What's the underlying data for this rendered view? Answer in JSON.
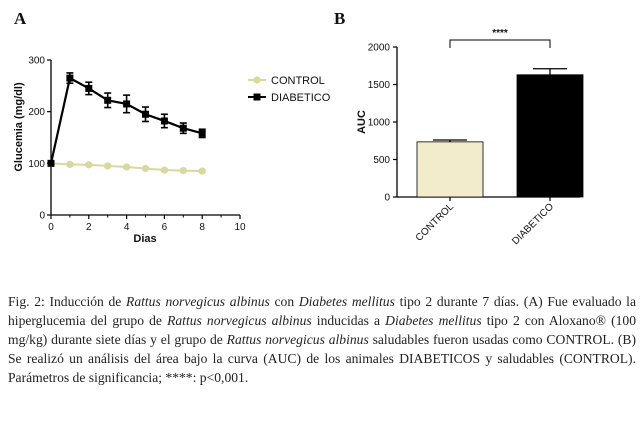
{
  "chart_data": [
    {
      "type": "line",
      "panel_label": "A",
      "xlabel": "Dias",
      "ylabel": "Glucemia (mg/dl)",
      "xlim": [
        0,
        10
      ],
      "ylim": [
        0,
        300
      ],
      "xticks": [
        "0",
        "2",
        "4",
        "6",
        "8",
        "10"
      ],
      "yticks": [
        "0",
        "100",
        "200",
        "300"
      ],
      "x": [
        0,
        1,
        2,
        3,
        4,
        5,
        6,
        7,
        8
      ],
      "series": [
        {
          "name": "CONTROL",
          "color": "#d8d8a0",
          "marker": "circle",
          "values": [
            100,
            98,
            97,
            95,
            93,
            90,
            87,
            86,
            85
          ],
          "errors": [
            2,
            2,
            2,
            2,
            2,
            2,
            2,
            2,
            2
          ]
        },
        {
          "name": "DIABETICO",
          "color": "#000000",
          "marker": "square",
          "values": [
            100,
            265,
            245,
            222,
            215,
            195,
            182,
            168,
            158
          ],
          "errors": [
            4,
            10,
            12,
            14,
            17,
            14,
            13,
            10,
            8
          ]
        }
      ],
      "legend_position": "right"
    },
    {
      "type": "bar",
      "panel_label": "B",
      "categories": [
        "CONTROL",
        "DIABETICO"
      ],
      "values": [
        735,
        1630
      ],
      "errors": [
        25,
        80
      ],
      "colors": [
        "#f2ebcc",
        "#000000"
      ],
      "ylabel": "AUC",
      "ylim": [
        0,
        2000
      ],
      "yticks": [
        "0",
        "500",
        "1000",
        "1500",
        "2000"
      ],
      "significance": "****"
    }
  ],
  "caption": {
    "lines": [
      [
        {
          "t": "Fig. 2: Inducción de "
        },
        {
          "t": "Rattus norvegicus albinus",
          "i": true
        },
        {
          "t": " con "
        },
        {
          "t": "Diabetes mellitus",
          "i": true
        },
        {
          "t": " tipo 2 durante 7 días. (A)"
        }
      ],
      [
        {
          "t": "Fue evaluado la hiperglucemia del grupo de "
        },
        {
          "t": "Rattus norvegicus albinus",
          "i": true
        },
        {
          "t": " inducidas a "
        },
        {
          "t": "Diabetes",
          "i": true
        }
      ],
      [
        {
          "t": "mellitus",
          "i": true
        },
        {
          "t": " tipo 2 con Aloxano® (100 mg/kg) durante siete días y el grupo de "
        },
        {
          "t": "Rattus norvegicus",
          "i": true
        }
      ],
      [
        {
          "t": "albinus",
          "i": true
        },
        {
          "t": " saludables fueron usadas como CONTROL. (B) Se realizó un análisis del área bajo"
        }
      ],
      [
        {
          "t": "la curva (AUC) de los animales DIABETICOS y saludables (CONTROL). Parámetros de"
        }
      ],
      [
        {
          "t": "significancia; ****: p<0,001."
        }
      ]
    ]
  }
}
